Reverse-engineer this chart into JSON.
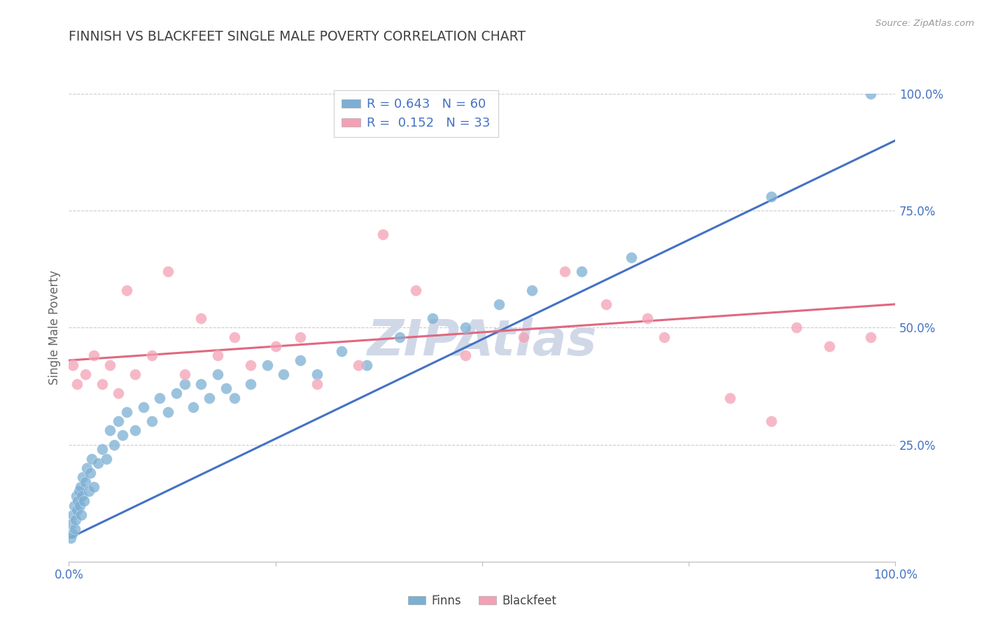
{
  "title": "FINNISH VS BLACKFEET SINGLE MALE POVERTY CORRELATION CHART",
  "source": "Source: ZipAtlas.com",
  "ylabel": "Single Male Poverty",
  "legend_label1": "Finns",
  "legend_label2": "Blackfeet",
  "r1": "0.643",
  "n1": "60",
  "r2": "0.152",
  "n2": "33",
  "color_finns": "#7bafd4",
  "color_blackfeet": "#f4a0b5",
  "color_line1": "#4472c4",
  "color_line2": "#e06880",
  "title_color": "#404040",
  "axis_label_color": "#666666",
  "tick_color": "#4472c4",
  "watermark_color": "#d0d8e8",
  "xlim": [
    0,
    100
  ],
  "ylim": [
    0,
    100
  ],
  "grid_color": "#cccccc",
  "background_color": "#ffffff",
  "finns_x": [
    0.2,
    0.3,
    0.4,
    0.5,
    0.6,
    0.7,
    0.8,
    0.9,
    1.0,
    1.1,
    1.2,
    1.3,
    1.4,
    1.5,
    1.6,
    1.7,
    1.8,
    2.0,
    2.2,
    2.4,
    2.6,
    2.8,
    3.0,
    3.5,
    4.0,
    4.5,
    5.0,
    5.5,
    6.0,
    6.5,
    7.0,
    8.0,
    9.0,
    10.0,
    11.0,
    12.0,
    13.0,
    14.0,
    15.0,
    16.0,
    17.0,
    18.0,
    19.0,
    20.0,
    22.0,
    24.0,
    26.0,
    28.0,
    30.0,
    33.0,
    36.0,
    40.0,
    44.0,
    48.0,
    52.0,
    56.0,
    62.0,
    68.0,
    85.0,
    97.0
  ],
  "finns_y": [
    5.0,
    8.0,
    6.0,
    10.0,
    12.0,
    7.0,
    9.0,
    14.0,
    11.0,
    13.0,
    15.0,
    12.0,
    16.0,
    10.0,
    14.0,
    18.0,
    13.0,
    17.0,
    20.0,
    15.0,
    19.0,
    22.0,
    16.0,
    21.0,
    24.0,
    22.0,
    28.0,
    25.0,
    30.0,
    27.0,
    32.0,
    28.0,
    33.0,
    30.0,
    35.0,
    32.0,
    36.0,
    38.0,
    33.0,
    38.0,
    35.0,
    40.0,
    37.0,
    35.0,
    38.0,
    42.0,
    40.0,
    43.0,
    40.0,
    45.0,
    42.0,
    48.0,
    52.0,
    50.0,
    55.0,
    58.0,
    62.0,
    65.0,
    78.0,
    100.0
  ],
  "blackfeet_x": [
    0.5,
    1.0,
    2.0,
    3.0,
    4.0,
    5.0,
    6.0,
    7.0,
    8.0,
    10.0,
    12.0,
    14.0,
    16.0,
    18.0,
    20.0,
    22.0,
    25.0,
    28.0,
    30.0,
    35.0,
    38.0,
    42.0,
    48.0,
    55.0,
    60.0,
    65.0,
    70.0,
    72.0,
    80.0,
    85.0,
    88.0,
    92.0,
    97.0
  ],
  "blackfeet_y": [
    42.0,
    38.0,
    40.0,
    44.0,
    38.0,
    42.0,
    36.0,
    58.0,
    40.0,
    44.0,
    62.0,
    40.0,
    52.0,
    44.0,
    48.0,
    42.0,
    46.0,
    48.0,
    38.0,
    42.0,
    70.0,
    58.0,
    44.0,
    48.0,
    62.0,
    55.0,
    52.0,
    48.0,
    35.0,
    30.0,
    50.0,
    46.0,
    48.0
  ],
  "line1_x0": 0,
  "line1_y0": 5,
  "line1_x1": 100,
  "line1_y1": 90,
  "line2_x0": 0,
  "line2_y0": 43,
  "line2_x1": 100,
  "line2_y1": 55
}
